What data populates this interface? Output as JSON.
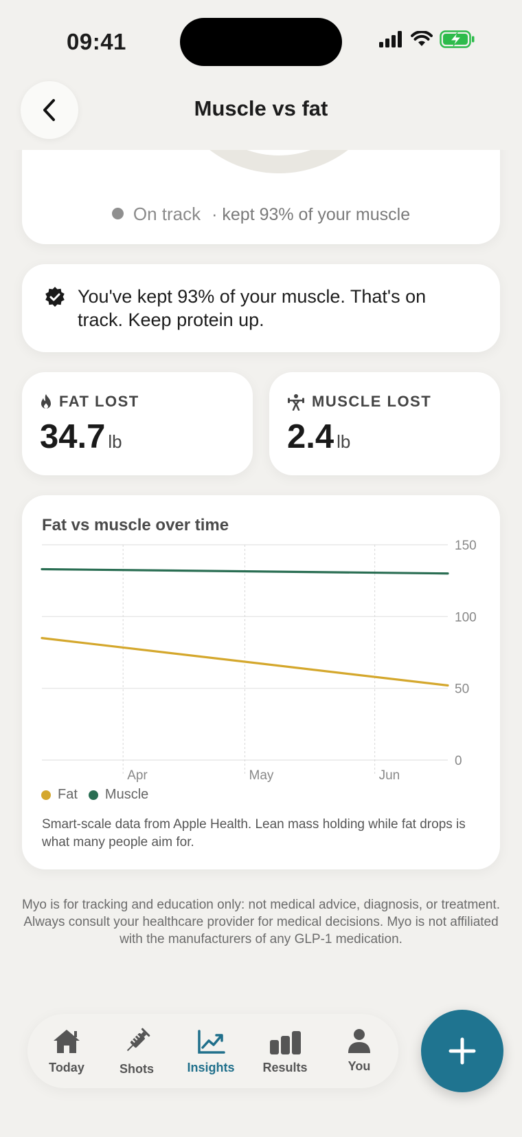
{
  "status_bar": {
    "time": "09:41"
  },
  "header": {
    "title": "Muscle vs fat"
  },
  "ring_card": {
    "status_label": "On track",
    "status_detail": "· kept 93% of your muscle"
  },
  "message": {
    "text": "You've kept 93% of your muscle. That's on track. Keep protein up."
  },
  "stats": {
    "fat": {
      "label": "FAT LOST",
      "value": "34.7",
      "unit": "lb"
    },
    "muscle": {
      "label": "MUSCLE LOST",
      "value": "2.4",
      "unit": "lb"
    }
  },
  "chart_card": {
    "title": "Fat vs muscle over time",
    "note": "Smart-scale data from Apple Health. Lean mass holding while fat drops is what many people aim for."
  },
  "chart_data": {
    "type": "line",
    "title": "Fat vs muscle over time",
    "x_tick_labels": [
      "Apr",
      "May",
      "Jun"
    ],
    "y_tick_labels": [
      "150",
      "100",
      "50",
      "0"
    ],
    "ylim": [
      0,
      150
    ],
    "grid": true,
    "legend": "bottom-left",
    "series": [
      {
        "name": "Fat",
        "color": "#d4a72c",
        "x": [
          0,
          1
        ],
        "y": [
          85,
          52
        ]
      },
      {
        "name": "Muscle",
        "color": "#2a6e53",
        "x": [
          0,
          1
        ],
        "y": [
          133,
          130
        ]
      }
    ]
  },
  "disclaimer": "Myo is for tracking and education only: not medical advice, diagnosis, or treatment. Always consult your healthcare provider for medical decisions. Myo is not affiliated with the manufacturers of any GLP-1 medication.",
  "tabs": [
    {
      "label": "Today",
      "icon": "home-icon"
    },
    {
      "label": "Shots",
      "icon": "syringe-icon"
    },
    {
      "label": "Insights",
      "icon": "trend-chart-icon",
      "active": true
    },
    {
      "label": "Results",
      "icon": "bar-chart-icon"
    },
    {
      "label": "You",
      "icon": "person-icon"
    }
  ],
  "colors": {
    "accent": "#1f7490",
    "fat": "#d4a72c",
    "muscle": "#2a6e53"
  }
}
